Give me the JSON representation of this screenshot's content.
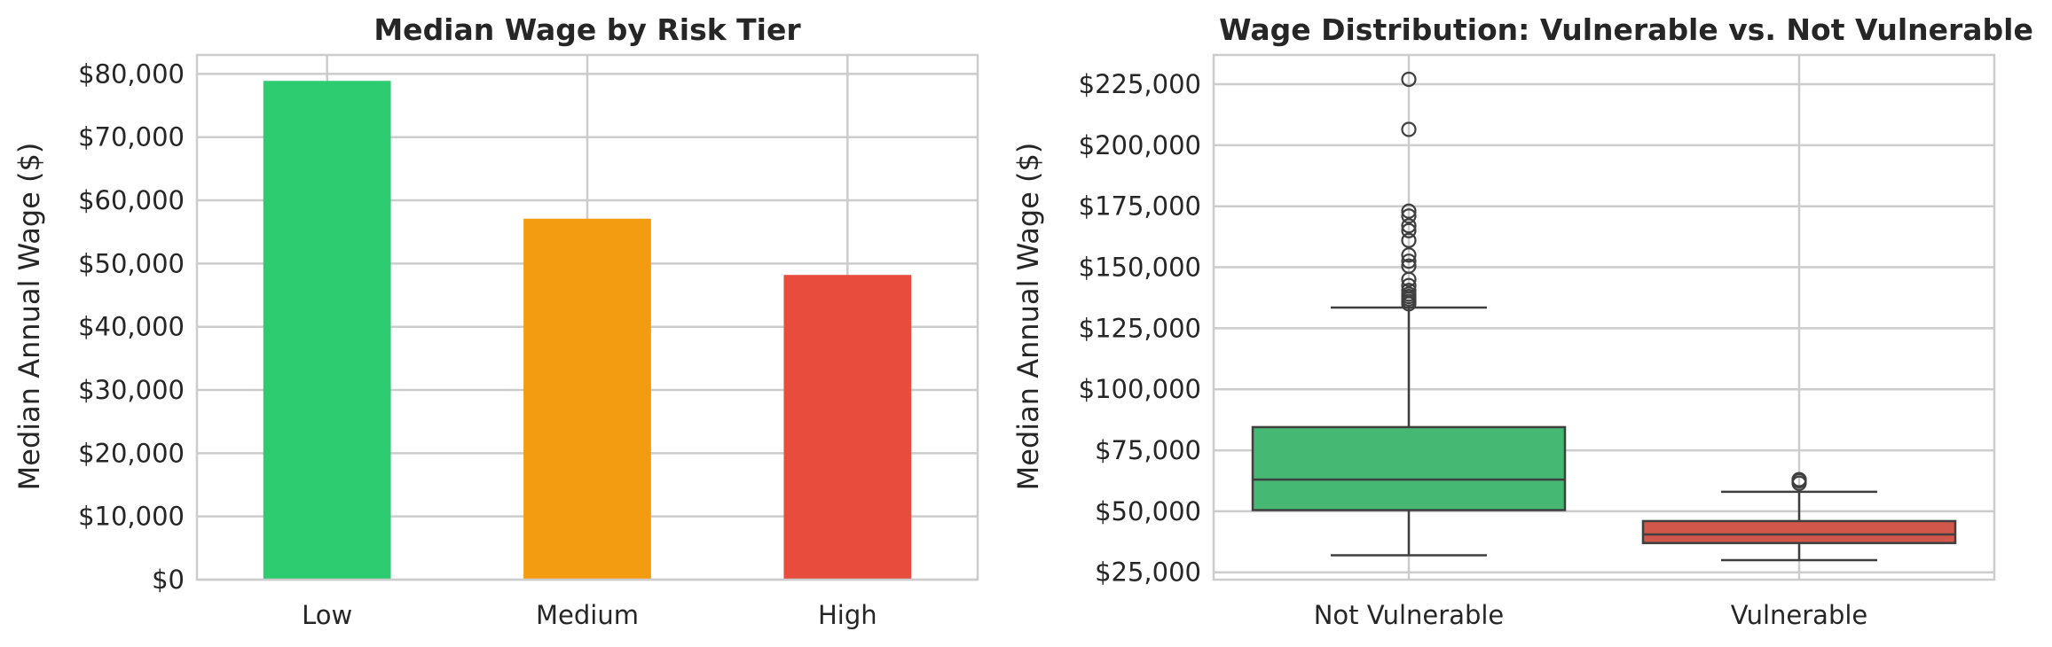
{
  "chart_data": [
    {
      "type": "bar",
      "title": "Median Wage by Risk Tier",
      "xlabel": "",
      "ylabel": "Median Annual Wage ($)",
      "categories": [
        "Low",
        "Medium",
        "High"
      ],
      "values": [
        78900,
        57100,
        48200
      ],
      "colors": [
        "#2ecc71",
        "#f39c12",
        "#e74c3c"
      ],
      "ylim": [
        0,
        83000
      ],
      "yticks": [
        0,
        10000,
        20000,
        30000,
        40000,
        50000,
        60000,
        70000,
        80000
      ],
      "ytick_labels": [
        "$0",
        "$10,000",
        "$20,000",
        "$30,000",
        "$40,000",
        "$50,000",
        "$60,000",
        "$70,000",
        "$80,000"
      ],
      "grid": true,
      "legend": "none"
    },
    {
      "type": "box",
      "title": "Wage Distribution: Vulnerable vs. Not Vulnerable",
      "xlabel": "",
      "ylabel": "Median Annual Wage ($)",
      "categories": [
        "Not Vulnerable",
        "Vulnerable"
      ],
      "colors": [
        "#45b974",
        "#d0574a"
      ],
      "ylim": [
        22000,
        237000
      ],
      "yticks": [
        25000,
        50000,
        75000,
        100000,
        125000,
        150000,
        175000,
        200000,
        225000
      ],
      "ytick_labels": [
        "$25,000",
        "$50,000",
        "$75,000",
        "$100,000",
        "$125,000",
        "$150,000",
        "$175,000",
        "$200,000",
        "$225,000"
      ],
      "boxes": [
        {
          "category": "Not Vulnerable",
          "whisker_low": 32000,
          "q1": 50500,
          "median": 63000,
          "q3": 84500,
          "whisker_high": 133500,
          "outliers": [
            135000,
            136000,
            137000,
            138000,
            139000,
            140500,
            142500,
            145000,
            150500,
            152500,
            155000,
            161000,
            165000,
            167000,
            171000,
            173000,
            206500,
            227000
          ]
        },
        {
          "category": "Vulnerable",
          "whisker_low": 30000,
          "q1": 37000,
          "median": 40500,
          "q3": 46000,
          "whisker_high": 58000,
          "outliers": [
            61500,
            62500,
            63000
          ]
        }
      ],
      "grid": true,
      "legend": "none"
    }
  ]
}
